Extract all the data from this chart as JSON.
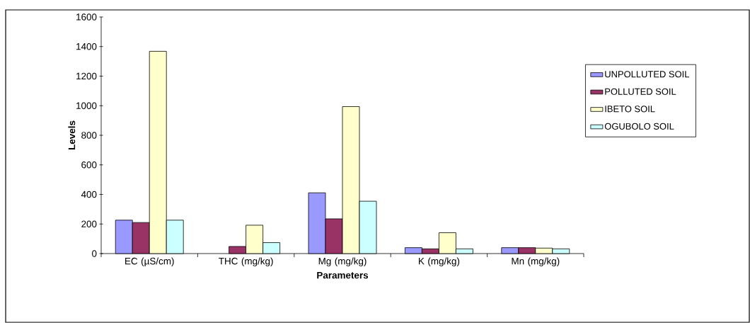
{
  "chart_data": {
    "type": "bar",
    "xlabel": "Parameters",
    "ylabel": "Levels",
    "categories": [
      "EC (µS/cm)",
      "THC (mg/kg)",
      "Mg (mg/kg)",
      "K (mg/kg)",
      "Mn (mg/kg)"
    ],
    "series": [
      {
        "name": "UNPOLLUTED SOIL",
        "color": "#9999ff",
        "values": [
          226,
          null,
          411,
          40,
          40
        ]
      },
      {
        "name": "POLLUTED SOIL",
        "color": "#993366",
        "values": [
          210,
          48,
          235,
          32,
          40
        ]
      },
      {
        "name": "IBETO SOIL",
        "color": "#ffffcc",
        "values": [
          1368,
          192,
          994,
          141,
          37
        ]
      },
      {
        "name": "OGUBOLO SOIL",
        "color": "#ccffff",
        "values": [
          226,
          74,
          354,
          32,
          32
        ]
      }
    ],
    "ylim": [
      0,
      1600
    ],
    "yticks": [
      0,
      200,
      400,
      600,
      800,
      1000,
      1200,
      1400,
      1600
    ],
    "legend": "right"
  }
}
